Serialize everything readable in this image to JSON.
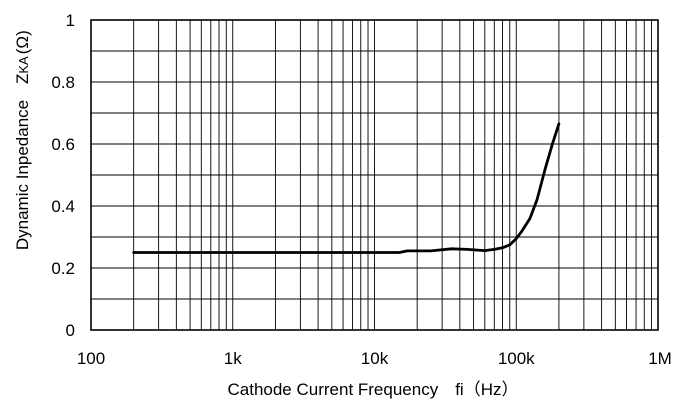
{
  "chart_data": {
    "type": "line",
    "title": "",
    "xlabel": "Cathode Current Frequency　fi（Hz）",
    "ylabel": "Dynamic Inpedance",
    "ylabel_symbol": "Z",
    "ylabel_subscript": "KA",
    "ylabel_unit": "(Ω)",
    "x_scale": "log",
    "xlim": [
      100,
      1000000
    ],
    "ylim": [
      0,
      1
    ],
    "x_ticks": [
      100,
      1000,
      10000,
      100000,
      1000000
    ],
    "x_tick_labels": [
      "100",
      "1k",
      "10k",
      "100k",
      "1M"
    ],
    "y_ticks": [
      0,
      0.2,
      0.4,
      0.6,
      0.8,
      1
    ],
    "y_tick_labels": [
      "0",
      "0.2",
      "0.4",
      "0.6",
      "0.8",
      "1"
    ],
    "y_minor_step": 0.1,
    "grid": true,
    "legend": "none",
    "colors": {
      "line": "#000000",
      "grid": "#000000",
      "background": "#ffffff"
    },
    "series": [
      {
        "x": [
          200,
          500,
          1000,
          5000,
          10000,
          15000,
          17000,
          25000,
          35000,
          45000,
          60000,
          70000,
          80000,
          90000,
          100000,
          110000,
          125000,
          140000,
          160000,
          180000,
          200000
        ],
        "y": [
          0.25,
          0.25,
          0.25,
          0.25,
          0.25,
          0.25,
          0.255,
          0.255,
          0.262,
          0.26,
          0.256,
          0.26,
          0.265,
          0.275,
          0.295,
          0.32,
          0.36,
          0.42,
          0.52,
          0.6,
          0.665
        ]
      }
    ]
  }
}
